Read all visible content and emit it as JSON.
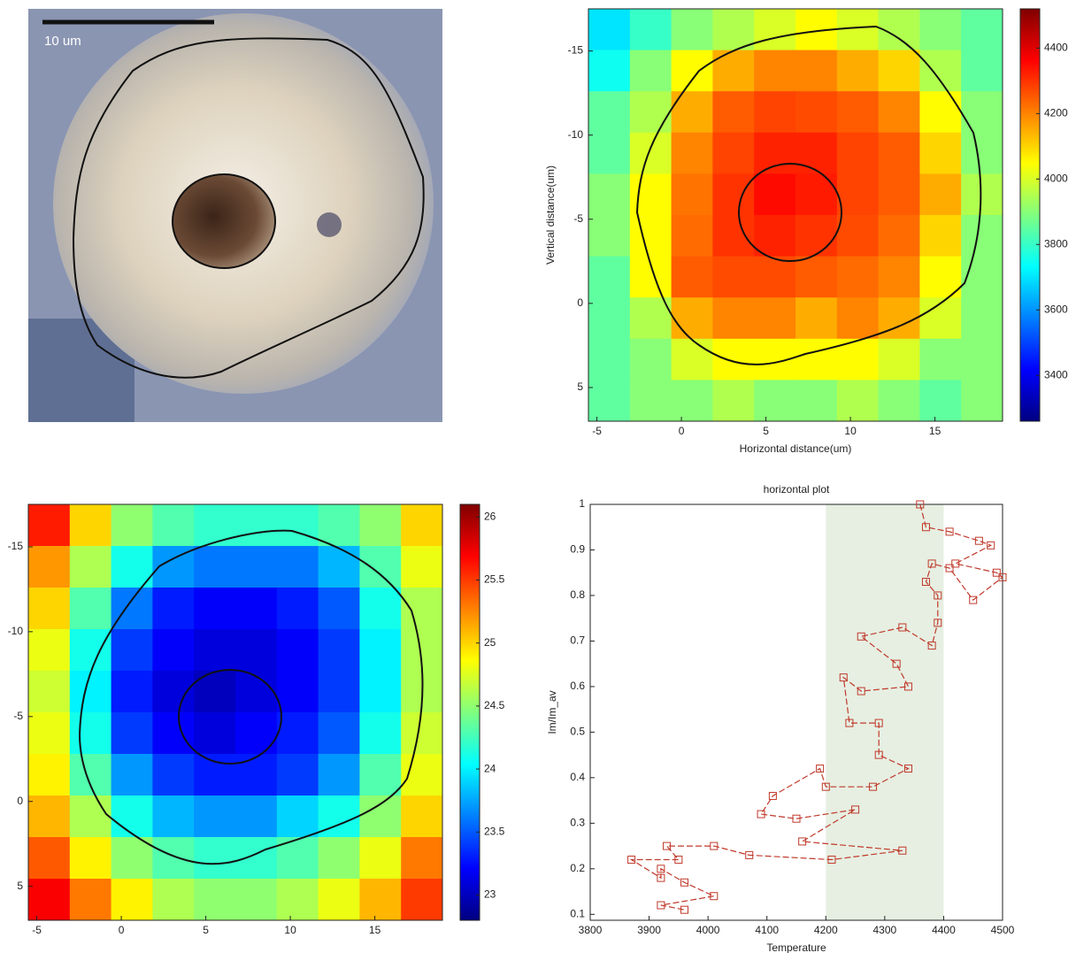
{
  "chart_data": [
    {
      "type": "image",
      "annotation": "10 um"
    },
    {
      "type": "heatmap",
      "xlabel": "Horizontal distance(um)",
      "ylabel": "Vertical distance(um)",
      "xlim": [
        -5.5,
        19
      ],
      "ylim": [
        -17.5,
        7
      ],
      "y_inverted": true,
      "xticks": [
        -5,
        0,
        5,
        10,
        15
      ],
      "yticks": [
        -15,
        -10,
        -5,
        0,
        5
      ],
      "clim": [
        3260,
        4520
      ],
      "cticks": [
        3400,
        3600,
        3800,
        4000,
        4200,
        4400
      ],
      "z": [
        [
          3700,
          3800,
          3900,
          3950,
          4000,
          4050,
          4000,
          3950,
          3900,
          3850
        ],
        [
          3750,
          3900,
          4050,
          4150,
          4200,
          4200,
          4150,
          4100,
          3950,
          3850
        ],
        [
          3850,
          3950,
          4150,
          4250,
          4280,
          4270,
          4250,
          4200,
          4050,
          3900
        ],
        [
          3850,
          4000,
          4200,
          4280,
          4320,
          4320,
          4280,
          4250,
          4100,
          3900
        ],
        [
          3900,
          4050,
          4220,
          4300,
          4350,
          4330,
          4280,
          4250,
          4150,
          3950
        ],
        [
          3900,
          4050,
          4230,
          4300,
          4320,
          4300,
          4270,
          4230,
          4100,
          3900
        ],
        [
          3850,
          4050,
          4250,
          4270,
          4270,
          4250,
          4230,
          4200,
          4050,
          3900
        ],
        [
          3850,
          3950,
          4150,
          4200,
          4200,
          4150,
          4200,
          4150,
          4000,
          3900
        ],
        [
          3850,
          3900,
          4000,
          4050,
          4050,
          4050,
          4050,
          4000,
          3900,
          3900
        ],
        [
          3850,
          3900,
          3900,
          3950,
          3900,
          3900,
          3950,
          3900,
          3850,
          3900
        ]
      ]
    },
    {
      "type": "heatmap",
      "xlim": [
        -5.5,
        19
      ],
      "ylim": [
        -17.5,
        7
      ],
      "y_inverted": true,
      "xticks": [
        -5,
        0,
        5,
        10,
        15
      ],
      "yticks": [
        -15,
        -10,
        -5,
        0,
        5
      ],
      "clim": [
        22.8,
        26.1
      ],
      "cticks": [
        23,
        23.5,
        24,
        24.5,
        25,
        25.5,
        26
      ],
      "z": [
        [
          25.6,
          25.0,
          24.5,
          24.3,
          24.2,
          24.2,
          24.2,
          24.3,
          24.5,
          25.0
        ],
        [
          25.2,
          24.6,
          24.1,
          23.7,
          23.6,
          23.6,
          23.6,
          23.8,
          24.3,
          24.8
        ],
        [
          25.0,
          24.3,
          23.6,
          23.3,
          23.2,
          23.2,
          23.3,
          23.5,
          24.1,
          24.6
        ],
        [
          24.8,
          24.1,
          23.4,
          23.2,
          23.1,
          23.1,
          23.2,
          23.4,
          24.0,
          24.6
        ],
        [
          24.7,
          24.0,
          23.3,
          23.1,
          23.0,
          23.1,
          23.2,
          23.4,
          24.0,
          24.6
        ],
        [
          24.8,
          24.1,
          23.4,
          23.2,
          23.1,
          23.2,
          23.3,
          23.5,
          24.1,
          24.7
        ],
        [
          24.9,
          24.3,
          23.7,
          23.4,
          23.3,
          23.3,
          23.4,
          23.7,
          24.3,
          24.8
        ],
        [
          25.1,
          24.6,
          24.1,
          23.8,
          23.7,
          23.7,
          23.9,
          24.1,
          24.5,
          25.0
        ],
        [
          25.4,
          24.9,
          24.5,
          24.3,
          24.2,
          24.2,
          24.3,
          24.5,
          24.8,
          25.3
        ],
        [
          25.7,
          25.3,
          24.9,
          24.6,
          24.5,
          24.5,
          24.6,
          24.8,
          25.1,
          25.5
        ]
      ]
    },
    {
      "type": "line",
      "title": "horizontal plot",
      "xlabel": "Temperature",
      "ylabel": "Im/Im_av",
      "xlim": [
        3800,
        4500
      ],
      "ylim": [
        0.087,
        1
      ],
      "xticks": [
        3800,
        3900,
        4000,
        4100,
        4200,
        4300,
        4400,
        4500
      ],
      "yticks": [
        0.1,
        0.2,
        0.3,
        0.4,
        0.5,
        0.6,
        0.7,
        0.8,
        0.9,
        1
      ],
      "shaded_span": [
        4200,
        4400
      ],
      "shade_color": "#e6efe2",
      "series": [
        {
          "color": "#c0392b",
          "x": [
            4360,
            4370,
            4410,
            4460,
            4480,
            4420,
            4490,
            4500,
            4450,
            4410,
            4380,
            4370,
            4390,
            4390,
            4380,
            4330,
            4260,
            4320,
            4340,
            4260,
            4230,
            4240,
            4290,
            4290,
            4340,
            4280,
            4200,
            4190,
            4110,
            4090,
            4150,
            4250,
            4160,
            4330,
            4210,
            4070,
            4010,
            3930,
            3950,
            3870,
            3920,
            3920,
            3960,
            4010,
            3920,
            3960
          ],
          "values": [
            1,
            0.95,
            0.94,
            0.92,
            0.91,
            0.87,
            0.85,
            0.84,
            0.79,
            0.86,
            0.87,
            0.83,
            0.8,
            0.74,
            0.69,
            0.73,
            0.71,
            0.65,
            0.6,
            0.59,
            0.62,
            0.52,
            0.52,
            0.45,
            0.42,
            0.38,
            0.38,
            0.42,
            0.36,
            0.32,
            0.31,
            0.33,
            0.26,
            0.24,
            0.22,
            0.23,
            0.25,
            0.25,
            0.22,
            0.22,
            0.18,
            0.2,
            0.17,
            0.14,
            0.12,
            0.11
          ]
        }
      ]
    }
  ]
}
